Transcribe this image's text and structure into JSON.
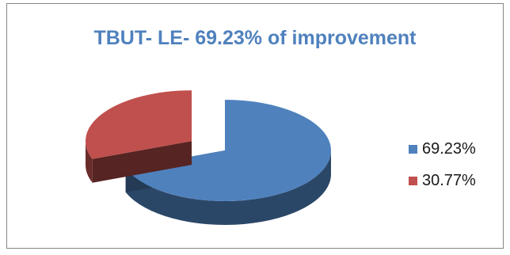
{
  "chart_data": {
    "type": "pie",
    "title": "TBUT- LE- 69.23% of improvement",
    "slices": [
      {
        "label": "69.23%",
        "value": 69.23,
        "color": "#4f81bd"
      },
      {
        "label": "30.77%",
        "value": 30.77,
        "color": "#c0504d"
      }
    ],
    "legend_position": "right",
    "exploded_slice": "30.77%"
  }
}
